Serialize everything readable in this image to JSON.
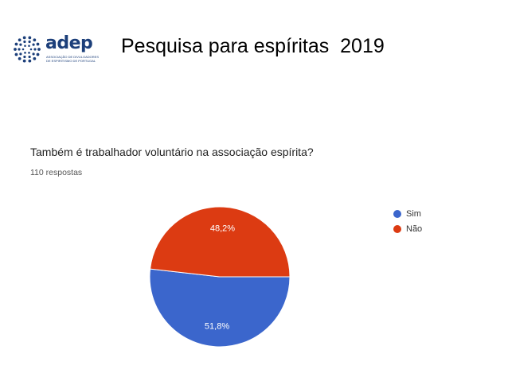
{
  "header": {
    "logo_word": "adep",
    "logo_subtitle": "ASSOCIAÇÃO DE DIVULGADORES DE ESPIRITISMO DE PORTUGAL",
    "title": "Pesquisa para espíritas  2019"
  },
  "colors": {
    "sim": "#3b66cc",
    "nao": "#dc3b12",
    "logo": "#1c3f7a"
  },
  "chart_data": {
    "type": "pie",
    "title": "Também é trabalhador voluntário na associação espírita?",
    "subtitle": "110 respostas",
    "categories": [
      "Sim",
      "Não"
    ],
    "values": [
      51.8,
      48.2
    ],
    "labels": [
      "51,8%",
      "48,2%"
    ],
    "legend_position": "right"
  }
}
